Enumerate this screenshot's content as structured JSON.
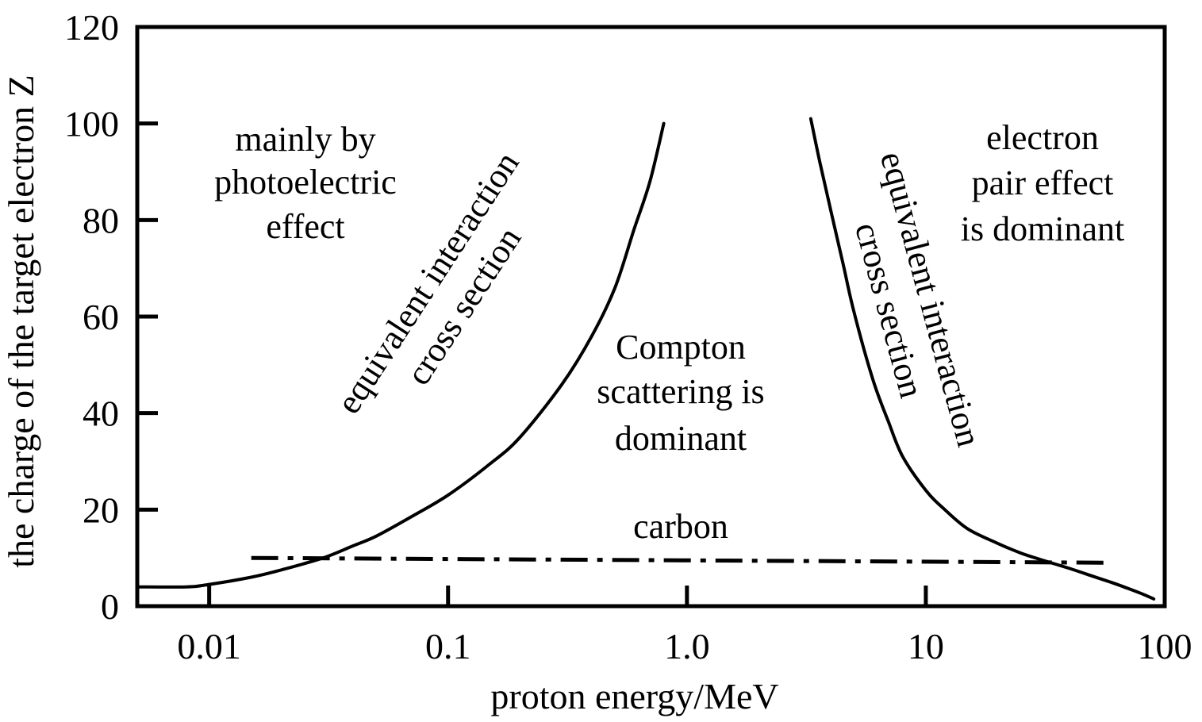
{
  "chart_data": {
    "type": "line",
    "xscale": "log",
    "xlabel": "proton energy/MeV",
    "ylabel": "the charge of the target electron Z",
    "xlim": [
      0.005,
      100
    ],
    "ylim": [
      0,
      120
    ],
    "x_ticks": [
      {
        "value": 0.01,
        "label": "0.01"
      },
      {
        "value": 0.1,
        "label": "0.1"
      },
      {
        "value": 1.0,
        "label": "1.0"
      },
      {
        "value": 10,
        "label": "10"
      },
      {
        "value": 100,
        "label": "100"
      }
    ],
    "y_ticks": [
      {
        "value": 0,
        "label": "0"
      },
      {
        "value": 20,
        "label": "20"
      },
      {
        "value": 40,
        "label": "40"
      },
      {
        "value": 60,
        "label": "60"
      },
      {
        "value": 80,
        "label": "80"
      },
      {
        "value": 100,
        "label": "100"
      },
      {
        "value": 120,
        "label": "120"
      }
    ],
    "grid": false,
    "series": [
      {
        "style": "solid",
        "color": "#000000",
        "x": [
          0.005,
          0.008,
          0.01,
          0.015,
          0.02,
          0.03,
          0.04,
          0.05,
          0.07,
          0.1,
          0.15,
          0.2,
          0.3,
          0.4,
          0.5,
          0.6,
          0.7,
          0.8
        ],
        "y": [
          4,
          4,
          4.5,
          6,
          7.5,
          10,
          12.5,
          14.5,
          18.5,
          23,
          29.5,
          35,
          46,
          56,
          66,
          78,
          88,
          100
        ]
      },
      {
        "style": "solid",
        "color": "#000000",
        "x": [
          3.3,
          3.6,
          4,
          4.5,
          5,
          6,
          7,
          8,
          10,
          12,
          15,
          20,
          25,
          30,
          40,
          50,
          60,
          70,
          80,
          90
        ],
        "y": [
          101,
          92,
          82,
          71,
          61,
          47,
          38,
          31,
          24,
          20,
          16,
          13,
          11,
          9.7,
          7.8,
          6.2,
          4.9,
          3.7,
          2.6,
          1.5
        ]
      },
      {
        "name": "carbon",
        "style": "dashdot",
        "color": "#000000",
        "x": [
          0.015,
          60
        ],
        "y": [
          10,
          9
        ]
      }
    ],
    "annotations": {
      "photoelectric": [
        "mainly by",
        "photoelectric",
        "effect"
      ],
      "left_curve": [
        "equivalent interaction",
        "cross section"
      ],
      "compton": [
        "Compton",
        "scattering is",
        "dominant"
      ],
      "right_curve": [
        "equivalent interaction",
        "cross section"
      ],
      "pair": [
        "electron",
        "pair effect",
        "is dominant"
      ],
      "carbon": "carbon"
    }
  }
}
